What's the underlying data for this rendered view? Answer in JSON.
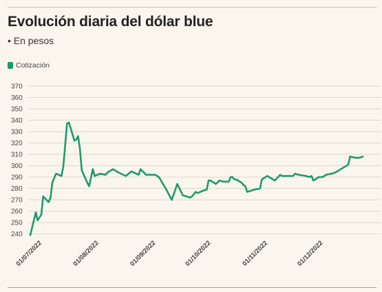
{
  "header": {
    "title": "Evolución diaria del dólar blue",
    "subtitle": "• En pesos"
  },
  "legend": {
    "label": "Cotización"
  },
  "colors": {
    "line": "#1c9a6c",
    "grid": "#ddd6c8",
    "background": "#fbf6ed"
  },
  "chart_data": {
    "type": "line",
    "title": "Evolución diaria del dólar blue",
    "subtitle": "• En pesos",
    "xlabel": "",
    "ylabel": "",
    "x_range": [
      "2022-07-01",
      "2022-12-30"
    ],
    "ylim": [
      235,
      370
    ],
    "yticks": [
      240,
      250,
      260,
      270,
      280,
      290,
      300,
      310,
      320,
      330,
      340,
      350,
      360,
      370
    ],
    "xticks": [
      {
        "date": "2022-07-01",
        "label": "01/07/2022"
      },
      {
        "date": "2022-08-01",
        "label": "01/08/2022"
      },
      {
        "date": "2022-09-01",
        "label": "01/09/2022"
      },
      {
        "date": "2022-10-01",
        "label": "01/10/2022"
      },
      {
        "date": "2022-11-01",
        "label": "01/11/2022"
      },
      {
        "date": "2022-12-01",
        "label": "01/12/2022"
      }
    ],
    "grid": "horizontal",
    "legend": "top-left",
    "series": [
      {
        "name": "Cotización",
        "color": "#1c9a6c",
        "points": [
          [
            "2022-07-01",
            239
          ],
          [
            "2022-07-04",
            259
          ],
          [
            "2022-07-05",
            252
          ],
          [
            "2022-07-07",
            257
          ],
          [
            "2022-07-08",
            273
          ],
          [
            "2022-07-11",
            268
          ],
          [
            "2022-07-12",
            272
          ],
          [
            "2022-07-13",
            285
          ],
          [
            "2022-07-15",
            293
          ],
          [
            "2022-07-18",
            291
          ],
          [
            "2022-07-19",
            300
          ],
          [
            "2022-07-21",
            337
          ],
          [
            "2022-07-22",
            338
          ],
          [
            "2022-07-25",
            322
          ],
          [
            "2022-07-26",
            323
          ],
          [
            "2022-07-27",
            326
          ],
          [
            "2022-07-28",
            315
          ],
          [
            "2022-07-29",
            296
          ],
          [
            "2022-08-01",
            285
          ],
          [
            "2022-08-02",
            282
          ],
          [
            "2022-08-04",
            297
          ],
          [
            "2022-08-05",
            291
          ],
          [
            "2022-08-08",
            293
          ],
          [
            "2022-08-11",
            292
          ],
          [
            "2022-08-12",
            294
          ],
          [
            "2022-08-15",
            297
          ],
          [
            "2022-08-18",
            294
          ],
          [
            "2022-08-22",
            291
          ],
          [
            "2022-08-25",
            295
          ],
          [
            "2022-08-29",
            292
          ],
          [
            "2022-08-30",
            297
          ],
          [
            "2022-09-02",
            292
          ],
          [
            "2022-09-05",
            292
          ],
          [
            "2022-09-07",
            292
          ],
          [
            "2022-09-09",
            290
          ],
          [
            "2022-09-13",
            279
          ],
          [
            "2022-09-16",
            270
          ],
          [
            "2022-09-19",
            284
          ],
          [
            "2022-09-22",
            274
          ],
          [
            "2022-09-26",
            272
          ],
          [
            "2022-09-27",
            273
          ],
          [
            "2022-09-29",
            277
          ],
          [
            "2022-09-30",
            276
          ],
          [
            "2022-10-03",
            278
          ],
          [
            "2022-10-05",
            279
          ],
          [
            "2022-10-06",
            287
          ],
          [
            "2022-10-07",
            287
          ],
          [
            "2022-10-10",
            284
          ],
          [
            "2022-10-12",
            287
          ],
          [
            "2022-10-14",
            286
          ],
          [
            "2022-10-17",
            286
          ],
          [
            "2022-10-18",
            290
          ],
          [
            "2022-10-19",
            290
          ],
          [
            "2022-10-20",
            288
          ],
          [
            "2022-10-21",
            288
          ],
          [
            "2022-10-24",
            285
          ],
          [
            "2022-10-25",
            283
          ],
          [
            "2022-10-26",
            282
          ],
          [
            "2022-10-27",
            277
          ],
          [
            "2022-10-31",
            279
          ],
          [
            "2022-11-03",
            280
          ],
          [
            "2022-11-04",
            288
          ],
          [
            "2022-11-07",
            291
          ],
          [
            "2022-11-11",
            287
          ],
          [
            "2022-11-14",
            292
          ],
          [
            "2022-11-15",
            291
          ],
          [
            "2022-11-18",
            291
          ],
          [
            "2022-11-21",
            291
          ],
          [
            "2022-11-22",
            293
          ],
          [
            "2022-11-24",
            292
          ],
          [
            "2022-11-28",
            291
          ],
          [
            "2022-11-30",
            290
          ],
          [
            "2022-12-01",
            291
          ],
          [
            "2022-12-02",
            287
          ],
          [
            "2022-12-05",
            290
          ],
          [
            "2022-12-07",
            290
          ],
          [
            "2022-12-09",
            292
          ],
          [
            "2022-12-12",
            293
          ],
          [
            "2022-12-14",
            294
          ],
          [
            "2022-12-16",
            296
          ],
          [
            "2022-12-19",
            299
          ],
          [
            "2022-12-21",
            301
          ],
          [
            "2022-12-22",
            308
          ],
          [
            "2022-12-25",
            307
          ],
          [
            "2022-12-27",
            307
          ],
          [
            "2022-12-29",
            308
          ]
        ]
      }
    ]
  }
}
